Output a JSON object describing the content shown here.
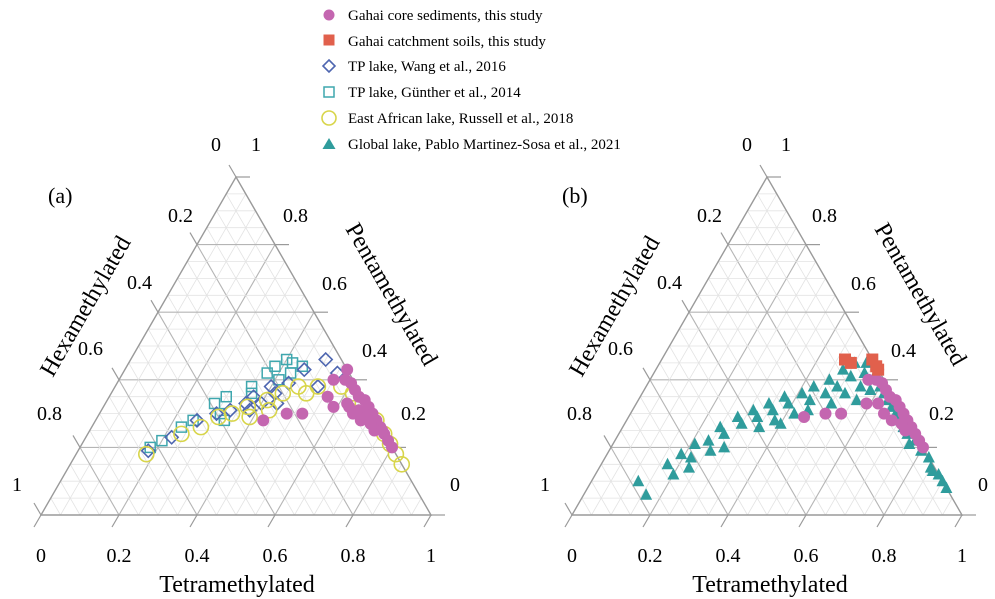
{
  "figure": {
    "panels": [
      "(a)",
      "(b)"
    ],
    "axis_titles": {
      "left": "Hexamethylated",
      "right": "Pentamethylated",
      "bottom": "Tetramethylated"
    },
    "ticks": {
      "bottom": [
        "0",
        "0.2",
        "0.4",
        "0.6",
        "0.8",
        "1"
      ],
      "right": [
        "0",
        "0.2",
        "0.4",
        "0.6",
        "0.8",
        "1"
      ],
      "left": [
        "1",
        "0.8",
        "0.6",
        "0.4",
        "0.2",
        "0"
      ]
    },
    "legend": [
      {
        "label": "Gahai core sediments, this study",
        "marker": "circle-filled",
        "color": "#c466b0"
      },
      {
        "label": "Gahai catchment soils, this study",
        "marker": "square-filled",
        "color": "#e1604c"
      },
      {
        "label": "TP lake, Wang et al., 2016",
        "marker": "diamond-open",
        "color": "#4e66b0"
      },
      {
        "label": "TP lake, Günther et al., 2014",
        "marker": "square-open",
        "color": "#3fa7ae"
      },
      {
        "label": "East African lake, Russell et al., 2018",
        "marker": "circle-open",
        "color": "#d8d54a"
      },
      {
        "label": "Global lake, Pablo Martinez-Sosa et al., 2021",
        "marker": "triangle-filled",
        "color": "#2f9c9c"
      }
    ]
  },
  "chart_data": [
    {
      "type": "scatter",
      "panel": "(a)",
      "components": [
        "Tetramethylated",
        "Pentamethylated",
        "Hexamethylated"
      ],
      "range": [
        0,
        1
      ],
      "grid": true,
      "series": [
        {
          "name": "TP lake, Günther et al., 2014",
          "points": [
            [
              0.18,
              0.2,
              0.62
            ],
            [
              0.2,
              0.22,
              0.58
            ],
            [
              0.23,
              0.26,
              0.51
            ],
            [
              0.25,
              0.28,
              0.47
            ],
            [
              0.28,
              0.33,
              0.39
            ],
            [
              0.3,
              0.35,
              0.35
            ],
            [
              0.31,
              0.3,
              0.39
            ],
            [
              0.33,
              0.28,
              0.39
            ],
            [
              0.35,
              0.38,
              0.27
            ],
            [
              0.37,
              0.42,
              0.21
            ],
            [
              0.38,
              0.44,
              0.18
            ],
            [
              0.4,
              0.46,
              0.14
            ],
            [
              0.42,
              0.45,
              0.13
            ],
            [
              0.43,
              0.42,
              0.15
            ],
            [
              0.41,
              0.4,
              0.19
            ],
            [
              0.45,
              0.44,
              0.11
            ],
            [
              0.36,
              0.36,
              0.28
            ]
          ]
        },
        {
          "name": "TP lake, Wang et al., 2016",
          "points": [
            [
              0.18,
              0.19,
              0.63
            ],
            [
              0.22,
              0.23,
              0.55
            ],
            [
              0.26,
              0.28,
              0.46
            ],
            [
              0.3,
              0.3,
              0.4
            ],
            [
              0.33,
              0.31,
              0.36
            ],
            [
              0.36,
              0.33,
              0.31
            ],
            [
              0.38,
              0.31,
              0.31
            ],
            [
              0.4,
              0.33,
              0.27
            ],
            [
              0.42,
              0.36,
              0.22
            ],
            [
              0.4,
              0.38,
              0.22
            ],
            [
              0.44,
              0.39,
              0.17
            ],
            [
              0.46,
              0.43,
              0.11
            ],
            [
              0.5,
              0.46,
              0.04
            ],
            [
              0.55,
              0.42,
              0.03
            ],
            [
              0.52,
              0.38,
              0.1
            ],
            [
              0.37,
              0.35,
              0.28
            ],
            [
              0.44,
              0.33,
              0.23
            ]
          ]
        },
        {
          "name": "East African lake, Russell et al., 2018",
          "points": [
            [
              0.18,
              0.18,
              0.64
            ],
            [
              0.24,
              0.24,
              0.52
            ],
            [
              0.28,
              0.26,
              0.46
            ],
            [
              0.31,
              0.29,
              0.4
            ],
            [
              0.34,
              0.3,
              0.36
            ],
            [
              0.37,
              0.32,
              0.31
            ],
            [
              0.39,
              0.29,
              0.32
            ],
            [
              0.41,
              0.34,
              0.25
            ],
            [
              0.44,
              0.36,
              0.2
            ],
            [
              0.47,
              0.38,
              0.15
            ],
            [
              0.52,
              0.38,
              0.1
            ],
            [
              0.58,
              0.38,
              0.04
            ],
            [
              0.66,
              0.33,
              0.01
            ],
            [
              0.72,
              0.28,
              0.0
            ],
            [
              0.76,
              0.24,
              0.0
            ],
            [
              0.82,
              0.18,
              0.0
            ],
            [
              0.85,
              0.15,
              0.0
            ],
            [
              0.43,
              0.31,
              0.26
            ],
            [
              0.5,
              0.36,
              0.14
            ],
            [
              0.62,
              0.36,
              0.02
            ],
            [
              0.69,
              0.3,
              0.01
            ],
            [
              0.79,
              0.21,
              0.0
            ]
          ]
        },
        {
          "name": "Gahai core sediments, this study",
          "points": [
            [
              0.43,
              0.28,
              0.29
            ],
            [
              0.48,
              0.3,
              0.22
            ],
            [
              0.52,
              0.3,
              0.18
            ],
            [
              0.55,
              0.4,
              0.05
            ],
            [
              0.58,
              0.4,
              0.02
            ],
            [
              0.6,
              0.39,
              0.01
            ],
            [
              0.62,
              0.37,
              0.01
            ],
            [
              0.64,
              0.35,
              0.01
            ],
            [
              0.66,
              0.34,
              0.0
            ],
            [
              0.68,
              0.32,
              0.0
            ],
            [
              0.7,
              0.3,
              0.0
            ],
            [
              0.72,
              0.28,
              0.0
            ],
            [
              0.74,
              0.26,
              0.0
            ],
            [
              0.76,
              0.24,
              0.0
            ],
            [
              0.62,
              0.33,
              0.05
            ],
            [
              0.65,
              0.3,
              0.05
            ],
            [
              0.68,
              0.28,
              0.04
            ],
            [
              0.71,
              0.27,
              0.02
            ],
            [
              0.73,
              0.25,
              0.02
            ],
            [
              0.56,
              0.35,
              0.09
            ],
            [
              0.59,
              0.32,
              0.09
            ],
            [
              0.57,
              0.43,
              0.0
            ],
            [
              0.63,
              0.32,
              0.05
            ],
            [
              0.66,
              0.31,
              0.03
            ],
            [
              0.69,
              0.29,
              0.02
            ],
            [
              0.75,
              0.25,
              0.0
            ],
            [
              0.78,
              0.22,
              0.0
            ],
            [
              0.8,
              0.2,
              0.0
            ]
          ]
        }
      ]
    },
    {
      "type": "scatter",
      "panel": "(b)",
      "components": [
        "Tetramethylated",
        "Pentamethylated",
        "Hexamethylated"
      ],
      "range": [
        0,
        1
      ],
      "grid": true,
      "series": [
        {
          "name": "Global lake, Pablo Martinez-Sosa et al., 2021",
          "points": [
            [
              0.12,
              0.1,
              0.78
            ],
            [
              0.16,
              0.06,
              0.78
            ],
            [
              0.17,
              0.15,
              0.68
            ],
            [
              0.19,
              0.18,
              0.63
            ],
            [
              0.21,
              0.21,
              0.58
            ],
            [
              0.22,
              0.17,
              0.61
            ],
            [
              0.24,
              0.22,
              0.54
            ],
            [
              0.25,
              0.26,
              0.49
            ],
            [
              0.27,
              0.24,
              0.49
            ],
            [
              0.28,
              0.29,
              0.43
            ],
            [
              0.3,
              0.27,
              0.43
            ],
            [
              0.31,
              0.31,
              0.38
            ],
            [
              0.33,
              0.29,
              0.38
            ],
            [
              0.34,
              0.33,
              0.33
            ],
            [
              0.36,
              0.31,
              0.33
            ],
            [
              0.37,
              0.35,
              0.28
            ],
            [
              0.38,
              0.28,
              0.34
            ],
            [
              0.39,
              0.33,
              0.28
            ],
            [
              0.41,
              0.36,
              0.23
            ],
            [
              0.42,
              0.3,
              0.28
            ],
            [
              0.43,
              0.38,
              0.19
            ],
            [
              0.44,
              0.34,
              0.22
            ],
            [
              0.46,
              0.4,
              0.14
            ],
            [
              0.47,
              0.36,
              0.17
            ],
            [
              0.48,
              0.43,
              0.09
            ],
            [
              0.49,
              0.38,
              0.13
            ],
            [
              0.5,
              0.45,
              0.05
            ],
            [
              0.51,
              0.41,
              0.08
            ],
            [
              0.53,
              0.45,
              0.02
            ],
            [
              0.54,
              0.42,
              0.04
            ],
            [
              0.55,
              0.38,
              0.07
            ],
            [
              0.57,
              0.41,
              0.02
            ],
            [
              0.58,
              0.37,
              0.05
            ],
            [
              0.6,
              0.38,
              0.02
            ],
            [
              0.62,
              0.36,
              0.02
            ],
            [
              0.64,
              0.34,
              0.02
            ],
            [
              0.66,
              0.32,
              0.02
            ],
            [
              0.68,
              0.3,
              0.02
            ],
            [
              0.7,
              0.28,
              0.02
            ],
            [
              0.72,
              0.26,
              0.02
            ],
            [
              0.74,
              0.24,
              0.02
            ],
            [
              0.77,
              0.22,
              0.01
            ],
            [
              0.8,
              0.19,
              0.01
            ],
            [
              0.85,
              0.14,
              0.01
            ],
            [
              0.88,
              0.12,
              0.0
            ],
            [
              0.9,
              0.1,
              0.0
            ],
            [
              0.92,
              0.08,
              0.0
            ],
            [
              0.86,
              0.13,
              0.01
            ],
            [
              0.83,
              0.17,
              0.0
            ],
            [
              0.76,
              0.21,
              0.03
            ],
            [
              0.45,
              0.31,
              0.24
            ],
            [
              0.4,
              0.27,
              0.33
            ],
            [
              0.35,
              0.26,
              0.39
            ],
            [
              0.29,
              0.2,
              0.51
            ],
            [
              0.26,
              0.19,
              0.55
            ],
            [
              0.23,
              0.14,
              0.63
            ],
            [
              0.2,
              0.12,
              0.68
            ],
            [
              0.52,
              0.36,
              0.12
            ],
            [
              0.56,
              0.34,
              0.1
            ],
            [
              0.5,
              0.33,
              0.17
            ]
          ]
        },
        {
          "name": "Gahai core sediments, this study",
          "points": [
            [
              0.45,
              0.29,
              0.26
            ],
            [
              0.5,
              0.3,
              0.2
            ],
            [
              0.54,
              0.3,
              0.16
            ],
            [
              0.56,
              0.4,
              0.04
            ],
            [
              0.58,
              0.4,
              0.02
            ],
            [
              0.6,
              0.39,
              0.01
            ],
            [
              0.62,
              0.37,
              0.01
            ],
            [
              0.64,
              0.35,
              0.01
            ],
            [
              0.66,
              0.34,
              0.0
            ],
            [
              0.68,
              0.32,
              0.0
            ],
            [
              0.7,
              0.3,
              0.0
            ],
            [
              0.72,
              0.28,
              0.0
            ],
            [
              0.74,
              0.26,
              0.0
            ],
            [
              0.76,
              0.24,
              0.0
            ],
            [
              0.62,
              0.33,
              0.05
            ],
            [
              0.65,
              0.3,
              0.05
            ],
            [
              0.68,
              0.28,
              0.04
            ],
            [
              0.71,
              0.27,
              0.02
            ],
            [
              0.73,
              0.25,
              0.02
            ],
            [
              0.59,
              0.33,
              0.08
            ],
            [
              0.57,
              0.43,
              0.0
            ],
            [
              0.78,
              0.22,
              0.0
            ],
            [
              0.8,
              0.2,
              0.0
            ]
          ]
        },
        {
          "name": "Gahai catchment soils, this study",
          "points": [
            [
              0.47,
              0.46,
              0.07
            ],
            [
              0.49,
              0.45,
              0.06
            ],
            [
              0.54,
              0.46,
              0.0
            ],
            [
              0.56,
              0.44,
              0.0
            ],
            [
              0.57,
              0.43,
              0.0
            ]
          ]
        }
      ]
    }
  ]
}
